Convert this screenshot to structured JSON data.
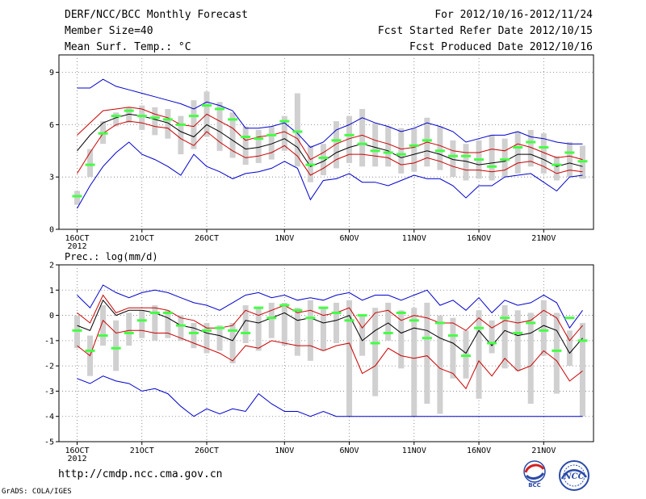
{
  "header": {
    "title": "DERF/NCC/BCC Monthly Forecast",
    "member_size": "Member Size=40",
    "variable": "Mean Surf. Temp.: °C",
    "period": "For 2012/10/16-2012/11/24",
    "started": "Fcst Started Refer Date 2012/10/15",
    "produced": "Fcst Produced Date 2012/10/16"
  },
  "footer": {
    "url": "http://cmdp.ncc.cma.gov.cn",
    "grads": "GrADS: COLA/IGES",
    "logo_left": "BCC",
    "logo_right": "NCC"
  },
  "chart_data": [
    {
      "type": "line",
      "title": "Mean Surf. Temp.: °C",
      "ylabel": "°C",
      "ylim": [
        0,
        10
      ],
      "yticks": [
        0,
        3,
        6,
        9
      ],
      "x": [
        1,
        2,
        3,
        4,
        5,
        6,
        7,
        8,
        9,
        10,
        11,
        12,
        13,
        14,
        15,
        16,
        17,
        18,
        19,
        20,
        21,
        22,
        23,
        24,
        25,
        26,
        27,
        28,
        29,
        30,
        31,
        32,
        33,
        34,
        35,
        36,
        37,
        38,
        39,
        40
      ],
      "xtick_positions": [
        1,
        6,
        11,
        17,
        22,
        27,
        32,
        37
      ],
      "xtick_labels": [
        "16OCT",
        "21OCT",
        "26OCT",
        "1NOV",
        "6NOV",
        "11NOV",
        "16NOV",
        "21NOV"
      ],
      "xtick_sublabel": "2012",
      "colors": {
        "max_min": "#0000cc",
        "spread": "#cc0000",
        "mean": "#000000",
        "box": "#d0d0d0",
        "obs": "#44ff44"
      },
      "series": [
        {
          "name": "max",
          "values": [
            8.1,
            8.1,
            8.6,
            8.2,
            8.0,
            7.8,
            7.6,
            7.4,
            7.2,
            6.9,
            7.3,
            7.1,
            6.8,
            5.8,
            5.8,
            5.9,
            6.1,
            5.5,
            4.7,
            5.0,
            5.7,
            6.0,
            6.4,
            6.1,
            5.9,
            5.6,
            5.8,
            6.1,
            5.9,
            5.6,
            5.0,
            5.2,
            5.4,
            5.4,
            5.6,
            5.3,
            5.2,
            5.0,
            4.9,
            4.9
          ]
        },
        {
          "name": "upper",
          "values": [
            5.4,
            6.1,
            6.8,
            6.9,
            7.0,
            6.9,
            6.6,
            6.4,
            6.0,
            5.9,
            6.6,
            6.2,
            5.8,
            5.1,
            5.3,
            5.4,
            5.6,
            5.2,
            4.0,
            4.4,
            4.9,
            5.2,
            5.4,
            5.1,
            4.9,
            4.6,
            4.7,
            5.0,
            4.8,
            4.5,
            4.4,
            4.4,
            4.6,
            4.5,
            4.9,
            4.7,
            4.4,
            4.1,
            4.2,
            4.0
          ]
        },
        {
          "name": "mean",
          "values": [
            4.5,
            5.4,
            6.1,
            6.4,
            6.6,
            6.5,
            6.3,
            6.1,
            5.6,
            5.3,
            6.0,
            5.6,
            5.1,
            4.6,
            4.7,
            4.9,
            5.2,
            4.7,
            3.6,
            3.9,
            4.4,
            4.7,
            4.9,
            4.7,
            4.5,
            4.1,
            4.3,
            4.5,
            4.3,
            4.0,
            3.9,
            3.7,
            3.8,
            3.9,
            4.3,
            4.3,
            4.0,
            3.6,
            3.8,
            3.6
          ]
        },
        {
          "name": "lower",
          "values": [
            3.2,
            4.4,
            5.5,
            6.0,
            6.2,
            6.1,
            5.9,
            5.8,
            5.2,
            4.8,
            5.6,
            5.0,
            4.5,
            4.1,
            4.2,
            4.4,
            4.8,
            4.2,
            3.1,
            3.5,
            4.0,
            4.3,
            4.3,
            4.2,
            4.1,
            3.7,
            3.8,
            4.1,
            3.9,
            3.6,
            3.4,
            3.4,
            3.3,
            3.4,
            3.8,
            3.9,
            3.6,
            3.2,
            3.4,
            3.3
          ]
        },
        {
          "name": "min",
          "values": [
            1.2,
            2.5,
            3.6,
            4.4,
            5.0,
            4.3,
            4.0,
            3.6,
            3.1,
            4.3,
            3.6,
            3.3,
            2.9,
            3.2,
            3.3,
            3.5,
            3.9,
            3.5,
            1.7,
            2.8,
            2.9,
            3.2,
            2.7,
            2.7,
            2.5,
            2.8,
            3.1,
            2.9,
            2.9,
            2.5,
            1.8,
            2.5,
            2.5,
            3.0,
            3.1,
            3.2,
            2.7,
            2.2,
            3.0,
            3.1
          ]
        },
        {
          "name": "box_low",
          "values": [
            1.4,
            3.0,
            4.9,
            5.9,
            6.1,
            5.7,
            5.4,
            5.2,
            4.3,
            4.6,
            5.3,
            4.5,
            4.1,
            3.7,
            3.8,
            4.0,
            4.5,
            3.6,
            2.7,
            3.1,
            3.5,
            3.8,
            3.6,
            3.6,
            3.6,
            3.2,
            3.3,
            3.6,
            3.4,
            3.0,
            2.8,
            2.9,
            2.8,
            3.0,
            3.2,
            3.6,
            3.2,
            2.8,
            3.0,
            2.9
          ]
        },
        {
          "name": "box_high",
          "values": [
            2.2,
            4.6,
            6.2,
            6.7,
            7.0,
            7.1,
            7.0,
            6.9,
            6.5,
            7.4,
            7.9,
            7.3,
            6.7,
            5.9,
            5.7,
            5.9,
            6.5,
            7.8,
            4.8,
            4.9,
            6.2,
            6.5,
            6.9,
            6.1,
            5.9,
            5.8,
            5.8,
            6.4,
            5.9,
            5.1,
            4.9,
            5.1,
            5.4,
            5.2,
            5.6,
            5.7,
            5.5,
            4.2,
            5.0,
            4.8
          ]
        },
        {
          "name": "observed",
          "values": [
            1.9,
            3.7,
            5.5,
            6.5,
            6.8,
            6.5,
            6.4,
            6.3,
            6.0,
            6.5,
            7.1,
            6.9,
            6.3,
            5.3,
            5.2,
            5.4,
            6.2,
            5.6,
            3.7,
            4.1,
            5.1,
            5.4,
            4.9,
            4.5,
            4.4,
            4.3,
            4.8,
            5.1,
            4.5,
            4.2,
            4.2,
            4.0,
            3.6,
            4.0,
            4.7,
            5.0,
            4.7,
            3.7,
            4.4,
            3.9
          ]
        }
      ]
    },
    {
      "type": "line",
      "title": "Prec.: log(mm/d)",
      "ylabel": "log(mm/d)",
      "ylim": [
        -5,
        2
      ],
      "yticks": [
        -5,
        -4,
        -3,
        -2,
        -1,
        0,
        1,
        2
      ],
      "x": [
        1,
        2,
        3,
        4,
        5,
        6,
        7,
        8,
        9,
        10,
        11,
        12,
        13,
        14,
        15,
        16,
        17,
        18,
        19,
        20,
        21,
        22,
        23,
        24,
        25,
        26,
        27,
        28,
        29,
        30,
        31,
        32,
        33,
        34,
        35,
        36,
        37,
        38,
        39,
        40
      ],
      "xtick_positions": [
        1,
        6,
        11,
        17,
        22,
        27,
        32,
        37
      ],
      "xtick_labels": [
        "16OCT",
        "21OCT",
        "26OCT",
        "1NOV",
        "6NOV",
        "11NOV",
        "16NOV",
        "21NOV"
      ],
      "xtick_sublabel": "2012",
      "colors": {
        "max_min": "#0000cc",
        "spread": "#cc0000",
        "mean": "#000000",
        "box": "#d0d0d0",
        "obs": "#44ff44"
      },
      "series": [
        {
          "name": "max",
          "values": [
            0.8,
            0.3,
            1.2,
            0.9,
            0.7,
            0.9,
            1.0,
            0.9,
            0.7,
            0.5,
            0.4,
            0.2,
            0.5,
            0.8,
            0.9,
            0.7,
            0.8,
            0.6,
            0.7,
            0.6,
            0.8,
            0.9,
            0.6,
            0.8,
            0.8,
            0.6,
            0.8,
            1.0,
            0.4,
            0.6,
            0.2,
            0.7,
            0.1,
            0.6,
            0.4,
            0.5,
            0.8,
            0.5,
            -0.5,
            0.2
          ]
        },
        {
          "name": "upper",
          "values": [
            0.1,
            -0.3,
            0.8,
            0.1,
            0.3,
            0.3,
            0.3,
            0.2,
            -0.1,
            -0.2,
            -0.5,
            -0.5,
            -0.4,
            0.2,
            0.0,
            0.2,
            0.4,
            0.1,
            0.2,
            0.0,
            0.1,
            0.3,
            -0.5,
            0.1,
            0.2,
            -0.2,
            0.0,
            -0.1,
            -0.3,
            -0.3,
            -0.6,
            -0.1,
            -0.5,
            -0.2,
            -0.3,
            -0.2,
            0.2,
            -0.1,
            -1.0,
            -0.4
          ]
        },
        {
          "name": "mean",
          "values": [
            -0.4,
            -0.6,
            0.6,
            0.0,
            0.2,
            0.2,
            0.1,
            -0.1,
            -0.4,
            -0.5,
            -0.7,
            -0.8,
            -1.0,
            -0.2,
            -0.3,
            -0.1,
            0.1,
            -0.2,
            -0.1,
            -0.3,
            -0.2,
            0.0,
            -1.0,
            -0.6,
            -0.3,
            -0.7,
            -0.5,
            -0.6,
            -0.9,
            -1.1,
            -1.5,
            -0.6,
            -1.2,
            -0.6,
            -0.8,
            -0.7,
            -0.4,
            -0.6,
            -1.5,
            -0.9
          ]
        },
        {
          "name": "lower",
          "values": [
            -1.2,
            -1.6,
            -0.2,
            -0.7,
            -0.6,
            -0.6,
            -0.7,
            -0.7,
            -0.9,
            -1.1,
            -1.3,
            -1.5,
            -1.8,
            -1.2,
            -1.3,
            -1.0,
            -1.1,
            -1.2,
            -1.2,
            -1.4,
            -1.2,
            -1.1,
            -2.3,
            -2.0,
            -1.3,
            -1.6,
            -1.7,
            -1.6,
            -2.1,
            -2.3,
            -2.9,
            -1.8,
            -2.4,
            -1.7,
            -2.2,
            -2.0,
            -1.4,
            -1.8,
            -2.6,
            -2.2
          ]
        },
        {
          "name": "min",
          "values": [
            -2.5,
            -2.7,
            -2.4,
            -2.6,
            -2.7,
            -3.0,
            -2.9,
            -3.1,
            -3.6,
            -4.0,
            -3.7,
            -3.9,
            -3.7,
            -3.8,
            -3.1,
            -3.5,
            -3.8,
            -3.8,
            -4.0,
            -3.8,
            -4.0,
            -4.0,
            -4.0,
            -4.0,
            -4.0,
            -4.0,
            -4.0,
            -4.0,
            -4.0,
            -4.0,
            -4.0,
            -4.0,
            -4.0,
            -4.0,
            -4.0,
            -4.0,
            -4.0,
            -4.0,
            -4.0,
            -4.0
          ]
        },
        {
          "name": "box_low",
          "values": [
            -1.3,
            -2.4,
            -1.2,
            -2.2,
            -1.2,
            -0.9,
            -1.0,
            -0.9,
            -1.0,
            -1.3,
            -1.5,
            -1.4,
            -1.9,
            -1.1,
            -1.4,
            -0.9,
            -1.2,
            -1.6,
            -1.8,
            -1.4,
            -1.1,
            -4.0,
            -1.6,
            -3.2,
            -1.0,
            -2.1,
            -4.0,
            -3.5,
            -3.9,
            -2.5,
            -2.5,
            -3.3,
            -1.5,
            -2.1,
            -2.2,
            -3.5,
            -1.6,
            -3.1,
            -2.0,
            -4.0
          ]
        },
        {
          "name": "box_high",
          "values": [
            0.0,
            -0.8,
            0.4,
            -0.2,
            0.1,
            0.2,
            0.4,
            0.2,
            0.0,
            -0.3,
            -0.3,
            -0.4,
            -0.3,
            0.4,
            0.3,
            0.5,
            0.5,
            0.3,
            0.6,
            0.3,
            0.5,
            0.6,
            0.0,
            0.3,
            0.5,
            0.2,
            0.3,
            0.5,
            0.0,
            -0.1,
            -0.6,
            0.2,
            -0.2,
            0.4,
            0.2,
            0.1,
            0.6,
            0.1,
            -0.6,
            -0.3
          ]
        },
        {
          "name": "observed",
          "values": [
            -0.6,
            -1.4,
            -0.8,
            -1.3,
            -0.7,
            -0.2,
            0.1,
            0.1,
            -0.4,
            -0.7,
            -0.6,
            -0.5,
            -0.6,
            -0.7,
            0.3,
            -0.1,
            0.4,
            0.2,
            -0.1,
            0.3,
            0.1,
            -0.2,
            0.0,
            -1.1,
            -0.7,
            0.1,
            -0.2,
            -0.9,
            -0.3,
            -0.8,
            -1.6,
            -0.5,
            -1.1,
            -0.1,
            -0.7,
            -0.3,
            -0.6,
            -1.4,
            -0.1,
            -1.0
          ]
        }
      ]
    }
  ]
}
